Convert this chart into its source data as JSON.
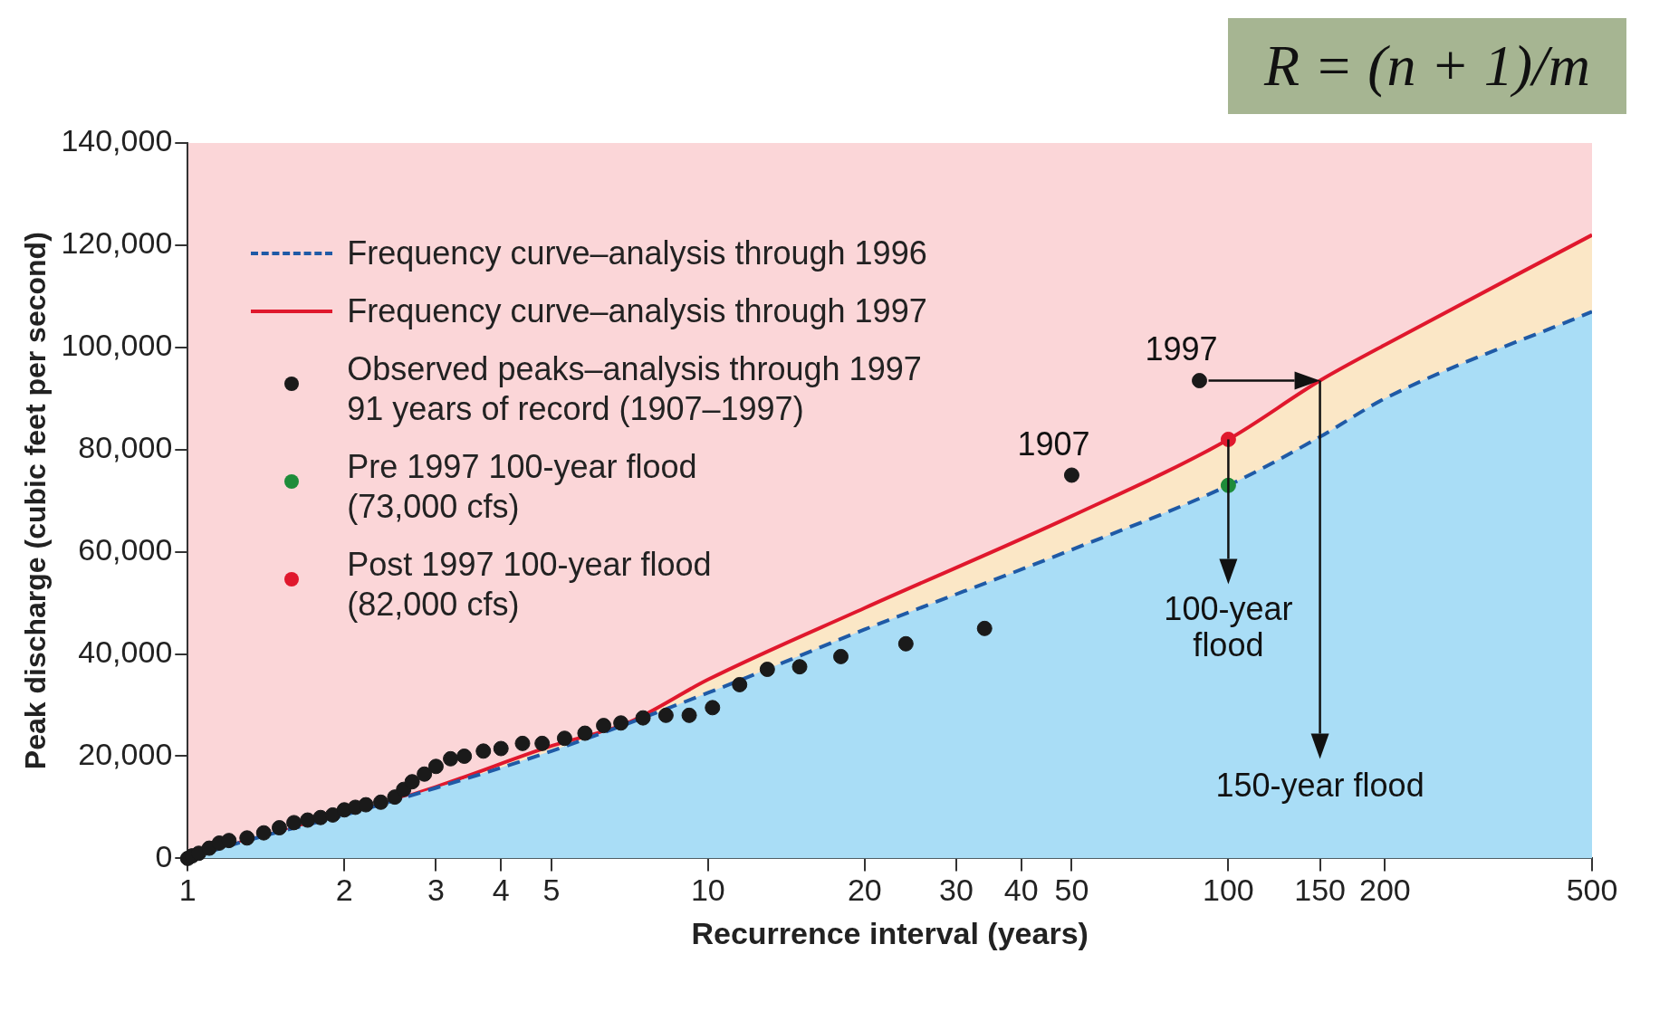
{
  "chart_data": {
    "type": "line",
    "xlabel": "Recurrence interval (years)",
    "ylabel": "Peak discharge (cubic feet per second)",
    "log": "x",
    "xlim": [
      1,
      500
    ],
    "xticks": [
      1,
      2,
      3,
      4,
      5,
      10,
      20,
      30,
      40,
      50,
      100,
      150,
      200,
      500
    ],
    "ylim": [
      0,
      140000
    ],
    "yticks": [
      {
        "value": 0,
        "label": "0"
      },
      {
        "value": 20000,
        "label": "20,000"
      },
      {
        "value": 40000,
        "label": "40,000"
      },
      {
        "value": 60000,
        "label": "60,000"
      },
      {
        "value": 80000,
        "label": "80,000"
      },
      {
        "value": 100000,
        "label": "100,000"
      },
      {
        "value": 120000,
        "label": "120,000"
      },
      {
        "value": 140000,
        "label": "140,000"
      }
    ],
    "grid": false,
    "legend": "top left",
    "series": [
      {
        "name": "Frequency curve–analysis through 1996",
        "line_style": "dashed",
        "color": "#1f5aa6",
        "x": [
          1,
          1.3,
          2,
          3,
          5,
          10,
          20,
          50,
          100,
          150,
          200,
          500
        ],
        "values": [
          0,
          3500,
          8500,
          13800,
          21000,
          32400,
          44800,
          60400,
          73000,
          82500,
          90000,
          107000
        ]
      },
      {
        "name": "Frequency curve–analysis through 1997",
        "line_style": "solid",
        "color": "#e0182d",
        "x": [
          1,
          1.3,
          2,
          3,
          5,
          7,
          10,
          20,
          50,
          100,
          150,
          200,
          500
        ],
        "values": [
          0,
          3500,
          8500,
          14000,
          22000,
          26500,
          35000,
          49000,
          67000,
          82000,
          93500,
          100500,
          122000
        ]
      },
      {
        "name": "Observed peaks–analysis through 1997\n91 years of record (1907–1997)",
        "type": "scatter",
        "marker": "circle",
        "color": "#1a1a1a",
        "x": [
          1,
          1.02,
          1.05,
          1.1,
          1.15,
          1.2,
          1.3,
          1.4,
          1.5,
          1.6,
          1.7,
          1.8,
          1.9,
          2,
          2.1,
          2.2,
          2.35,
          2.5,
          2.6,
          2.7,
          2.85,
          3,
          3.2,
          3.4,
          3.7,
          4,
          4.4,
          4.8,
          5.3,
          5.8,
          6.3,
          6.8,
          7.5,
          8.3,
          9.2,
          10.2,
          11.5,
          13,
          15,
          18,
          24,
          34,
          50,
          88
        ],
        "values": [
          0,
          500,
          1000,
          2000,
          3000,
          3500,
          4000,
          5000,
          6000,
          7000,
          7500,
          8000,
          8500,
          9500,
          10000,
          10500,
          11000,
          12000,
          13500,
          15000,
          16500,
          18000,
          19500,
          20000,
          21000,
          21500,
          22500,
          22500,
          23500,
          24500,
          26000,
          26500,
          27500,
          28000,
          28000,
          29500,
          34000,
          37000,
          37500,
          39500,
          42000,
          45000,
          75000,
          93500
        ]
      },
      {
        "name": "Pre 1997 100-year flood\n(73,000 cfs)",
        "type": "scatter",
        "marker": "circle",
        "color": "#1e8c3a",
        "x": [
          100
        ],
        "values": [
          73000
        ]
      },
      {
        "name": "Post 1997 100-year flood\n(82,000 cfs)",
        "type": "scatter",
        "marker": "circle",
        "color": "#e0182d",
        "x": [
          100
        ],
        "values": [
          82000
        ]
      }
    ],
    "annotations": [
      {
        "text": "1997",
        "x": 88,
        "y": 93500
      },
      {
        "text": "1907",
        "x": 50,
        "y": 75000
      },
      {
        "text": "100-year\nflood",
        "x": 100,
        "y": 82000
      },
      {
        "text": "150-year flood",
        "x": 150,
        "y": 93500
      },
      "R = (n + 1)/m"
    ]
  }
}
